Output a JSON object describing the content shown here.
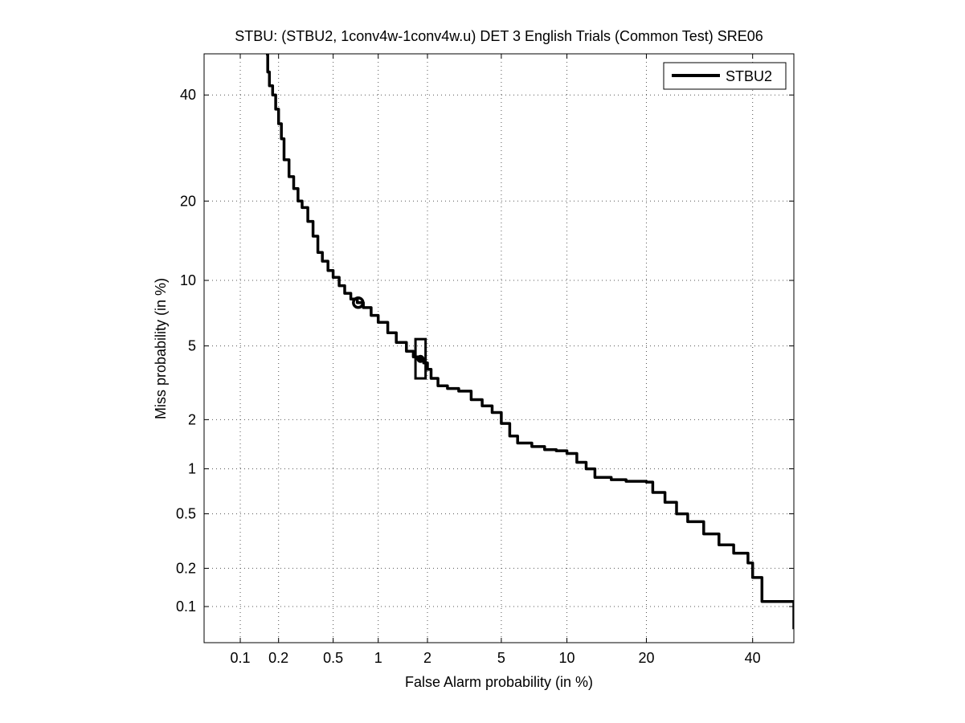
{
  "chart_data": {
    "type": "line",
    "title": "STBU: (STBU2, 1conv4w-1conv4w.u) DET 3 English Trials (Common Test) SRE06",
    "xlabel": "False Alarm probability (in %)",
    "ylabel": "Miss probability (in %)",
    "scale": "normal-deviate (probit) on both axes",
    "xlim": [
      0.05,
      49
    ],
    "ylim": [
      0.05,
      49
    ],
    "x_ticks": [
      0.1,
      0.2,
      0.5,
      1,
      2,
      5,
      10,
      20,
      40
    ],
    "x_tick_labels": [
      "0.1",
      "0.2",
      "0.5",
      "1",
      "2",
      "5",
      "10",
      "20",
      "40"
    ],
    "y_ticks": [
      0.1,
      0.2,
      0.5,
      1,
      2,
      5,
      10,
      20,
      40
    ],
    "y_tick_labels": [
      "0.1",
      "0.2",
      "0.5",
      "1",
      "2",
      "5",
      "10",
      "20",
      "40"
    ],
    "grid": true,
    "legend": {
      "position": "top-right",
      "entries": [
        "STBU2"
      ]
    },
    "series": [
      {
        "name": "STBU2",
        "color": "#000000",
        "x": [
          0.16,
          0.165,
          0.17,
          0.18,
          0.19,
          0.2,
          0.21,
          0.22,
          0.24,
          0.26,
          0.28,
          0.3,
          0.33,
          0.36,
          0.39,
          0.42,
          0.46,
          0.5,
          0.55,
          0.6,
          0.66,
          0.73,
          0.8,
          0.9,
          1.0,
          1.15,
          1.3,
          1.5,
          1.65,
          1.8,
          1.9,
          2.0,
          2.1,
          2.3,
          2.6,
          3.0,
          3.5,
          4.0,
          4.5,
          5.0,
          5.5,
          6.0,
          7.0,
          8.0,
          9.0,
          10.0,
          11.0,
          12.0,
          13.0,
          15.0,
          17.0,
          19.0,
          20.0,
          21.0,
          23.0,
          25.0,
          27.0,
          30.0,
          33.0,
          36.0,
          39.0,
          40.0,
          42.0,
          45.0,
          47.0,
          49.0
        ],
        "y": [
          49,
          45,
          42,
          40,
          37,
          34,
          31,
          27,
          24,
          22,
          20,
          19,
          17,
          15,
          13,
          12,
          11,
          10.3,
          9.5,
          8.8,
          8.3,
          8.0,
          7.6,
          7.0,
          6.5,
          5.8,
          5.2,
          4.7,
          4.4,
          4.3,
          4.1,
          3.8,
          3.4,
          3.1,
          3.0,
          2.9,
          2.6,
          2.4,
          2.2,
          1.9,
          1.6,
          1.45,
          1.38,
          1.32,
          1.3,
          1.25,
          1.1,
          1.0,
          0.88,
          0.85,
          0.83,
          0.83,
          0.82,
          0.7,
          0.6,
          0.5,
          0.44,
          0.36,
          0.3,
          0.26,
          0.22,
          0.17,
          0.11,
          0.11,
          0.11,
          0.065
        ]
      }
    ],
    "markers": [
      {
        "type": "circle",
        "x": 0.74,
        "y": 8.0
      },
      {
        "type": "box",
        "x": 1.82,
        "y": 4.3,
        "x_range": [
          1.7,
          1.95
        ],
        "y_range": [
          3.4,
          5.4
        ]
      }
    ]
  }
}
